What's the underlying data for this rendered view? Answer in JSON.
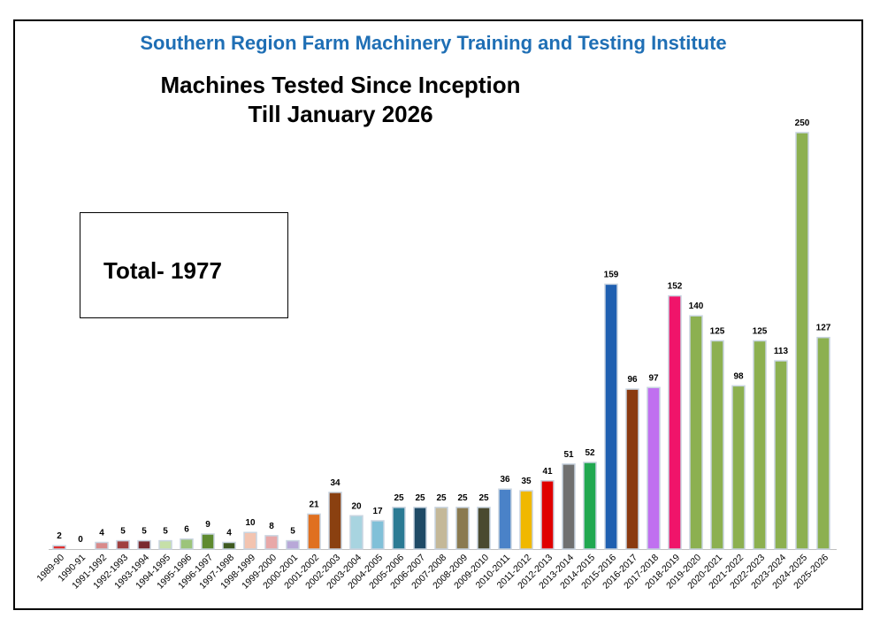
{
  "header": {
    "institute": "Southern Region Farm Machinery Training and Testing Institute",
    "title_line1": "Machines Tested Since Inception",
    "title_line2": "Till January 2026"
  },
  "total_box": {
    "text": "Total- 1977"
  },
  "chart_data": {
    "type": "bar",
    "title": "Machines Tested Since Inception Till January 2026",
    "xlabel": "",
    "ylabel": "",
    "ylim": [
      0,
      260
    ],
    "grid": false,
    "legend": "none",
    "categories": [
      "1989-90",
      "1990-91",
      "1991-1992",
      "1992-1993",
      "1993-1994",
      "1994-1995",
      "1995-1996",
      "1996-1997",
      "1997-1998",
      "1998-1999",
      "1999-2000",
      "2000-2001",
      "2001-2002",
      "2002-2003",
      "2003-2004",
      "2004-2005",
      "2005-2006",
      "2006-2007",
      "2007-2008",
      "2008-2009",
      "2009-2010",
      "2010-2011",
      "2011-2012",
      "2012-2013",
      "2013-2014",
      "2014-2015",
      "2015-2016",
      "2016-2017",
      "2017-2018",
      "2018-2019",
      "2019-2020",
      "2020-2021",
      "2021-2022",
      "2022-2023",
      "2023-2024",
      "2024-2025",
      "2025-2026"
    ],
    "values": [
      2,
      0,
      4,
      5,
      5,
      5,
      6,
      9,
      4,
      10,
      8,
      5,
      21,
      34,
      20,
      17,
      25,
      25,
      25,
      25,
      25,
      36,
      35,
      41,
      51,
      52,
      159,
      96,
      97,
      152,
      140,
      125,
      98,
      125,
      113,
      250,
      127
    ],
    "colors": [
      "#e03030",
      "#c04040",
      "#d98a8a",
      "#a04040",
      "#7a2a30",
      "#c6e0a8",
      "#9cc47a",
      "#5e8a30",
      "#3e5a20",
      "#f3c4b0",
      "#e8a8a8",
      "#b8a8d8",
      "#e07020",
      "#8a4010",
      "#a8d4e0",
      "#80c0d8",
      "#2a7a94",
      "#1e4a66",
      "#c4b898",
      "#8a7a50",
      "#4a4a30",
      "#4a82c8",
      "#f0b800",
      "#e00000",
      "#707070",
      "#20a850",
      "#1f5fb0",
      "#8a3a10",
      "#c070f0",
      "#f0146a",
      "#8cb050",
      "#8cb050",
      "#8cb050",
      "#8cb050",
      "#8cb050",
      "#8cb050",
      "#8cb050"
    ]
  }
}
